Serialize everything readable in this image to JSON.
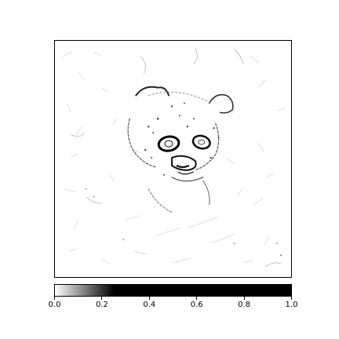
{
  "figure": {
    "subject": "raccoon edge-detection map",
    "colormap": "gray_r",
    "colorbar": {
      "ticks": [
        "0.0",
        "0.2",
        "0.4",
        "0.6",
        "0.8",
        "1.0"
      ],
      "range": [
        0.0,
        1.0
      ],
      "saturation_point": 0.25
    }
  }
}
